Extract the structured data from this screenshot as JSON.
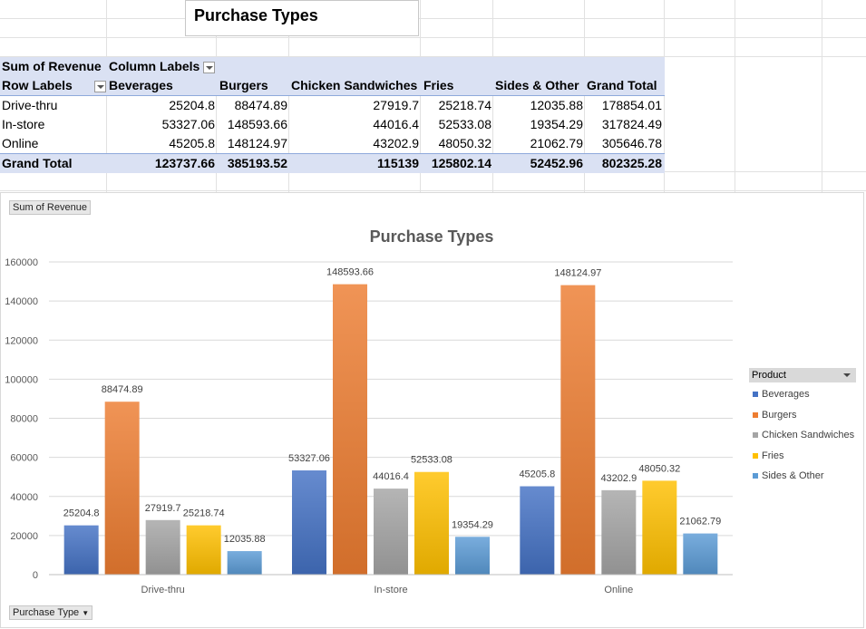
{
  "title_box": {
    "text": "Purchase Types"
  },
  "pivot": {
    "corner": "Sum of Revenue",
    "column_labels": "Column Labels",
    "row_labels": "Row Labels",
    "columns": [
      "Beverages",
      "Burgers",
      "Chicken Sandwiches",
      "Fries",
      "Sides & Other",
      "Grand Total"
    ],
    "rows": [
      {
        "label": "Drive-thru",
        "values": [
          "25204.8",
          "88474.89",
          "27919.7",
          "25218.74",
          "12035.88",
          "178854.01"
        ]
      },
      {
        "label": "In-store",
        "values": [
          "53327.06",
          "148593.66",
          "44016.4",
          "52533.08",
          "19354.29",
          "317824.49"
        ]
      },
      {
        "label": "Online",
        "values": [
          "45205.8",
          "148124.97",
          "43202.9",
          "48050.32",
          "21062.79",
          "305646.78"
        ]
      }
    ],
    "total": {
      "label": "Grand Total",
      "values": [
        "123737.66",
        "385193.52",
        "115139",
        "125802.14",
        "52452.96",
        "802325.28"
      ]
    }
  },
  "chart_buttons": {
    "values_field": "Sum of Revenue",
    "axis_field": "Purchase Type"
  },
  "legend": {
    "title": "Product"
  },
  "colors": {
    "Beverages": "#4472c4",
    "Burgers": "#ed7d31",
    "Chicken Sandwiches": "#a5a5a5",
    "Fries": "#ffc000",
    "Sides & Other": "#5b9bd5"
  },
  "chart_data": {
    "type": "bar",
    "title": "Purchase Types",
    "categories": [
      "Drive-thru",
      "In-store",
      "Online"
    ],
    "series": [
      {
        "name": "Beverages",
        "values": [
          25204.8,
          53327.06,
          45205.8
        ]
      },
      {
        "name": "Burgers",
        "values": [
          88474.89,
          148593.66,
          148124.97
        ]
      },
      {
        "name": "Chicken Sandwiches",
        "values": [
          27919.7,
          44016.4,
          43202.9
        ]
      },
      {
        "name": "Fries",
        "values": [
          25218.74,
          52533.08,
          48050.32
        ]
      },
      {
        "name": "Sides & Other",
        "values": [
          12035.88,
          19354.29,
          21062.79
        ]
      }
    ],
    "data_labels": [
      [
        "25204.8",
        "53327.06",
        "45205.8"
      ],
      [
        "88474.89",
        "148593.66",
        "148124.97"
      ],
      [
        "27919.7",
        "44016.4",
        "43202.9"
      ],
      [
        "25218.74",
        "52533.08",
        "48050.32"
      ],
      [
        "12035.88",
        "19354.29",
        "21062.79"
      ]
    ],
    "ylim": [
      0,
      160000
    ],
    "yticks": [
      "0",
      "20000",
      "40000",
      "60000",
      "80000",
      "100000",
      "120000",
      "140000",
      "160000"
    ],
    "grid": true,
    "legend_position": "right"
  }
}
